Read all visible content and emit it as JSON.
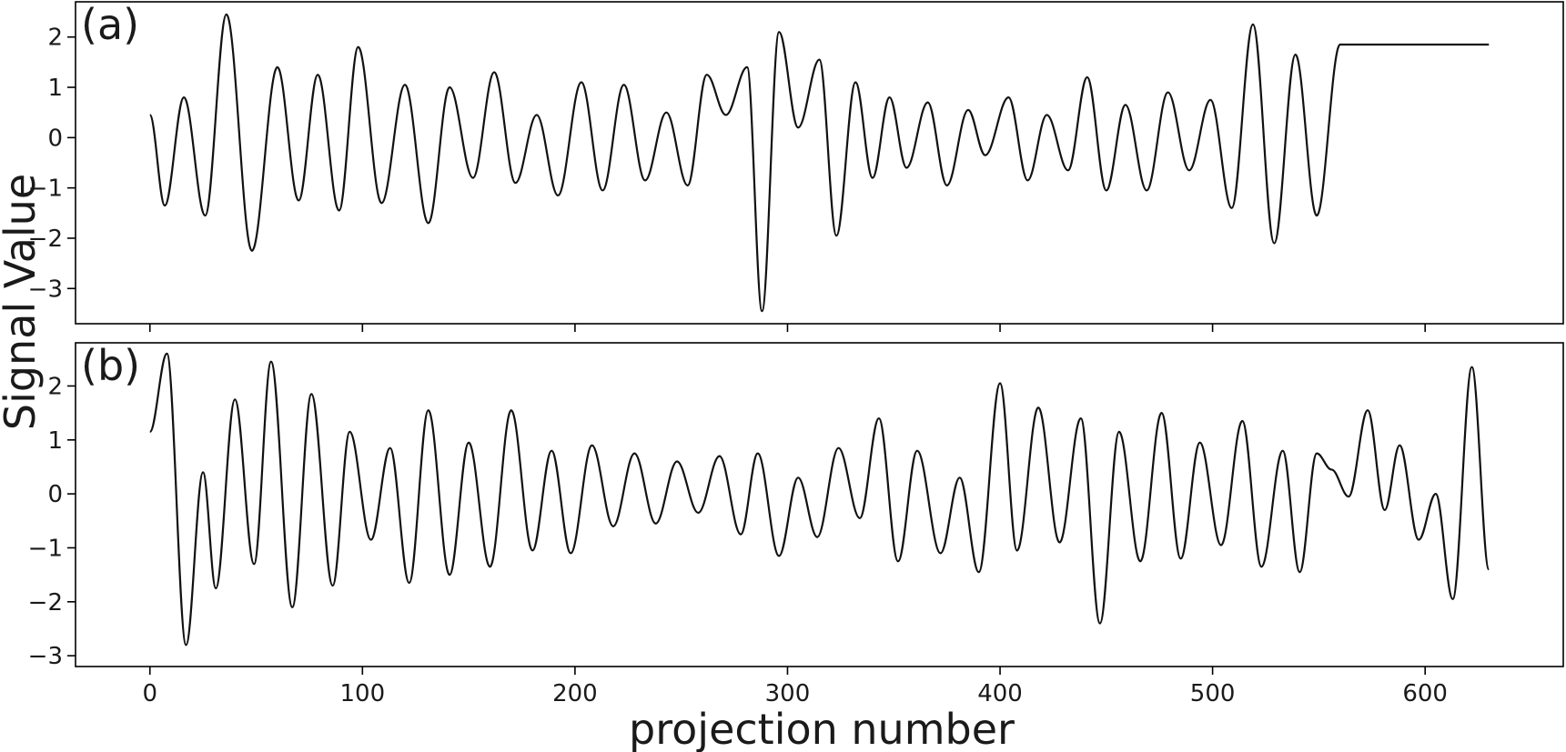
{
  "chart_data": [
    {
      "type": "line",
      "panel_label": "(a)",
      "xlim": [
        -35,
        665
      ],
      "ylim": [
        -3.7,
        2.7
      ],
      "xticks": [
        0,
        100,
        200,
        300,
        400,
        500,
        600
      ],
      "yticks": [
        -3,
        -2,
        -1,
        0,
        1,
        2
      ],
      "ytick_labels": [
        "−3",
        "−2",
        "−1",
        "0",
        "1",
        "2"
      ],
      "series": [
        {
          "color": "#111111",
          "x": [
            0,
            7,
            16,
            26,
            36,
            48,
            60,
            70,
            79,
            89,
            98,
            109,
            120,
            131,
            141,
            152,
            162,
            172,
            182,
            192,
            203,
            213,
            223,
            233,
            243,
            253,
            262,
            271,
            281,
            288,
            296,
            305,
            315,
            323,
            332,
            340,
            348,
            356,
            366,
            375,
            385,
            393,
            404,
            413,
            422,
            432,
            441,
            450,
            459,
            469,
            479,
            489,
            499,
            509,
            519,
            529,
            539,
            549,
            560,
            570,
            580,
            590,
            600,
            610,
            620,
            630
          ],
          "y": [
            0.45,
            -1.35,
            0.8,
            -1.55,
            2.45,
            -2.25,
            1.4,
            -1.25,
            1.25,
            -1.45,
            1.8,
            -1.3,
            1.05,
            -1.7,
            1.0,
            -0.8,
            1.3,
            -0.9,
            0.45,
            -1.15,
            1.1,
            -1.05,
            1.05,
            -0.85,
            0.5,
            -0.95,
            1.25,
            0.45,
            1.4,
            -3.45,
            2.1,
            0.2,
            1.55,
            -1.95,
            1.1,
            -0.8,
            0.8,
            -0.6,
            0.7,
            -0.95,
            0.55,
            -0.35,
            0.8,
            -0.85,
            0.45,
            -0.65,
            1.2,
            -1.05,
            0.65,
            -1.05,
            0.9,
            -0.65,
            0.75,
            -1.4,
            2.25,
            -2.1,
            1.65,
            -1.55,
            1.85,
            1.85,
            1.85,
            1.85,
            1.85,
            1.85,
            1.85,
            1.85
          ]
        }
      ]
    },
    {
      "type": "line",
      "panel_label": "(b)",
      "xlabel": "projection number",
      "xlim": [
        -35,
        665
      ],
      "ylim": [
        -3.2,
        2.8
      ],
      "xticks": [
        0,
        100,
        200,
        300,
        400,
        500,
        600
      ],
      "xtick_labels": [
        "0",
        "100",
        "200",
        "300",
        "400",
        "500",
        "600"
      ],
      "yticks": [
        -3,
        -2,
        -1,
        0,
        1,
        2
      ],
      "ytick_labels": [
        "−3",
        "−2",
        "−1",
        "0",
        "1",
        "2"
      ],
      "series": [
        {
          "color": "#111111",
          "x": [
            0,
            8,
            17,
            25,
            31,
            40,
            49,
            57,
            67,
            76,
            86,
            94,
            104,
            113,
            122,
            131,
            141,
            150,
            160,
            170,
            180,
            189,
            198,
            208,
            218,
            228,
            238,
            248,
            258,
            268,
            278,
            286,
            296,
            305,
            314,
            324,
            334,
            343,
            352,
            361,
            372,
            381,
            390,
            400,
            408,
            418,
            428,
            438,
            447,
            456,
            466,
            476,
            485,
            494,
            504,
            514,
            523,
            533,
            541,
            549,
            556,
            564,
            573,
            581,
            588,
            597,
            605,
            613,
            622,
            630
          ],
          "y": [
            1.15,
            2.6,
            -2.8,
            0.4,
            -1.75,
            1.75,
            -1.3,
            2.45,
            -2.1,
            1.85,
            -1.7,
            1.15,
            -0.85,
            0.85,
            -1.65,
            1.55,
            -1.5,
            0.95,
            -1.35,
            1.55,
            -1.05,
            0.8,
            -1.1,
            0.9,
            -0.6,
            0.75,
            -0.55,
            0.6,
            -0.35,
            0.7,
            -0.75,
            0.75,
            -1.15,
            0.3,
            -0.8,
            0.85,
            -0.45,
            1.4,
            -1.25,
            0.8,
            -1.1,
            0.3,
            -1.45,
            2.05,
            -1.05,
            1.6,
            -0.9,
            1.4,
            -2.4,
            1.15,
            -1.25,
            1.5,
            -1.2,
            0.95,
            -0.95,
            1.35,
            -1.35,
            0.8,
            -1.45,
            0.75,
            0.45,
            -0.05,
            1.55,
            -0.3,
            0.9,
            -0.85,
            0.0,
            -1.95,
            2.35,
            -1.4
          ]
        }
      ]
    }
  ],
  "shared": {
    "ylabel": "Signal Value"
  }
}
